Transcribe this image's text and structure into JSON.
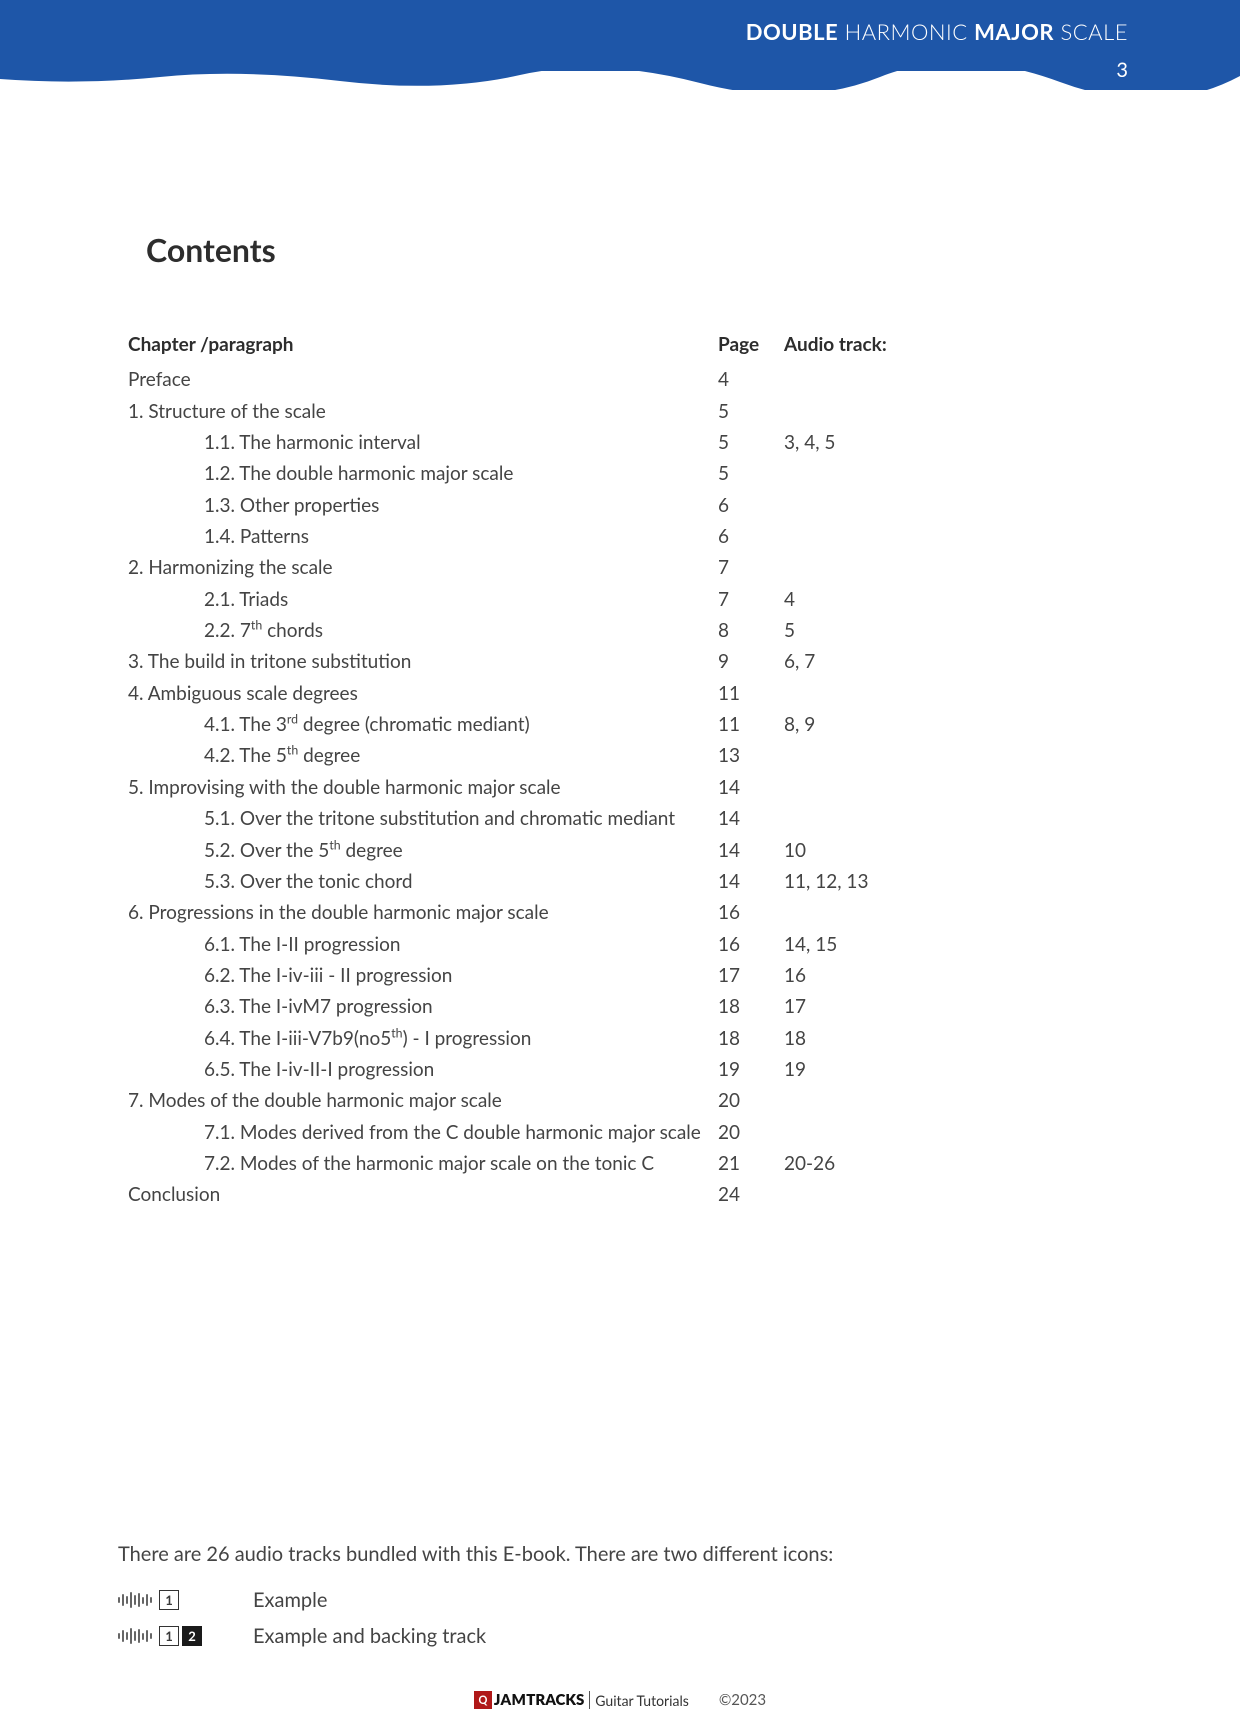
{
  "header": {
    "title_bold1": "DOUBLE",
    "title_light1": " HARMONIC ",
    "title_bold2": "MAJOR",
    "title_light2": " SCALE",
    "page_number": "3",
    "banner_color": "#1e56a8"
  },
  "contents_heading": "Contents",
  "toc_headers": {
    "chapter": "Chapter /paragraph",
    "page": "Page",
    "audio": "Audio track:"
  },
  "toc": [
    {
      "indent": 0,
      "chapter": "Preface",
      "page": "4",
      "audio": ""
    },
    {
      "indent": 0,
      "chapter": "1. Structure of the scale",
      "page": "5",
      "audio": ""
    },
    {
      "indent": 1,
      "chapter": "1.1. The harmonic interval",
      "page": "5",
      "audio": "3, 4, 5"
    },
    {
      "indent": 1,
      "chapter": "1.2. The double harmonic major scale",
      "page": "5",
      "audio": ""
    },
    {
      "indent": 1,
      "chapter": "1.3. Other properties",
      "page": "6",
      "audio": ""
    },
    {
      "indent": 1,
      "chapter": "1.4. Patterns",
      "page": "6",
      "audio": ""
    },
    {
      "indent": 0,
      "chapter": "2. Harmonizing the scale",
      "page": "7",
      "audio": ""
    },
    {
      "indent": 1,
      "chapter": "2.1. Triads",
      "page": "7",
      "audio": "4"
    },
    {
      "indent": 1,
      "chapter_html": "2.2. 7<sup>th</sup> chords",
      "page": "8",
      "audio": "5"
    },
    {
      "indent": 0,
      "chapter": "3. The build in tritone substitution",
      "page": "9",
      "audio": "6, 7"
    },
    {
      "indent": 0,
      "chapter": "4. Ambiguous scale degrees",
      "page": "11",
      "audio": ""
    },
    {
      "indent": 1,
      "chapter_html": "4.1. The 3<sup>rd</sup> degree (chromatic mediant)",
      "page": "11",
      "audio": "8, 9"
    },
    {
      "indent": 1,
      "chapter_html": "4.2. The 5<sup>th</sup> degree",
      "page": "13",
      "audio": ""
    },
    {
      "indent": 0,
      "chapter": "5. Improvising with the double harmonic major scale",
      "page": "14",
      "audio": ""
    },
    {
      "indent": 1,
      "chapter": "5.1. Over the tritone substitution and chromatic mediant",
      "page": "14",
      "audio": ""
    },
    {
      "indent": 1,
      "chapter_html": "5.2. Over the 5<sup>th</sup> degree",
      "page": "14",
      "audio": "10"
    },
    {
      "indent": 1,
      "chapter": "5.3. Over the tonic chord",
      "page": "14",
      "audio": "11, 12, 13"
    },
    {
      "indent": 0,
      "chapter": "6. Progressions in the double harmonic major scale",
      "page": "16",
      "audio": ""
    },
    {
      "indent": 1,
      "chapter": "6.1. The I-II progression",
      "page": "16",
      "audio": "14, 15"
    },
    {
      "indent": 1,
      "chapter": "6.2. The I-iv-iii - II progression",
      "page": "17",
      "audio": "16"
    },
    {
      "indent": 1,
      "chapter": "6.3. The I-ivM7 progression",
      "page": "18",
      "audio": "17"
    },
    {
      "indent": 1,
      "chapter_html": "6.4. The I-iii-V7b9(no5<sup>th</sup>) - I progression",
      "page": "18",
      "audio": "18"
    },
    {
      "indent": 1,
      "chapter": "6.5. The I-iv-II-I progression",
      "page": "19",
      "audio": "19"
    },
    {
      "indent": 0,
      "chapter": "7. Modes of the double harmonic major scale",
      "page": "20",
      "audio": ""
    },
    {
      "indent": 1,
      "chapter": "7.1. Modes derived from the C double harmonic major scale",
      "page": "20",
      "audio": ""
    },
    {
      "indent": 1,
      "chapter": "7.2. Modes of the harmonic major scale on the tonic C",
      "page": "21",
      "audio": "20-26"
    },
    {
      "indent": 0,
      "chapter": "Conclusion",
      "page": "24",
      "audio": ""
    }
  ],
  "audio_note": "There are 26 audio tracks bundled with this E-book. There are two different icons:",
  "legend": {
    "example": "Example",
    "example_backing": "Example and backing track",
    "box1": "1",
    "box2": "2"
  },
  "footer": {
    "logo_sq": "Q",
    "logo_jam": "JAM",
    "logo_tracks": "TRACKS",
    "logo_gt": "Guitar Tutorials",
    "copyright": "©2023"
  }
}
